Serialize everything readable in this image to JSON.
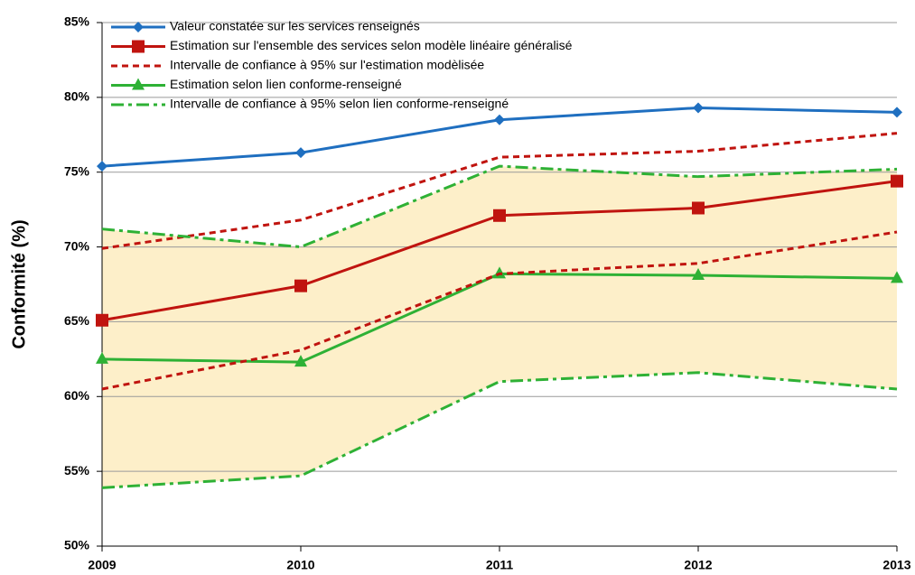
{
  "chart_data": {
    "type": "line",
    "y_label": "Conformité (%)",
    "categories": [
      "2009",
      "2010",
      "2011",
      "2012",
      "2013"
    ],
    "ylim": [
      50,
      85
    ],
    "yticks": [
      {
        "value": 50,
        "label": "50%"
      },
      {
        "value": 55,
        "label": "55%"
      },
      {
        "value": 60,
        "label": "60%"
      },
      {
        "value": 65,
        "label": "65%"
      },
      {
        "value": 70,
        "label": "70%"
      },
      {
        "value": 75,
        "label": "75%"
      },
      {
        "value": 80,
        "label": "80%"
      },
      {
        "value": 85,
        "label": "85%"
      }
    ],
    "grid": true,
    "legend": "top-left",
    "fill_color": "#fdefc9",
    "series": [
      {
        "name": "Valeur constatée sur les services renseignés",
        "color": "#1f6fc0",
        "dash": "solid",
        "marker": "diamond",
        "values": [
          75.4,
          76.3,
          78.5,
          79.3,
          79.0
        ]
      },
      {
        "name": "Estimation sur l'ensemble des services selon modèle linéaire généralisé",
        "color": "#c0140f",
        "dash": "solid",
        "marker": "square",
        "values": [
          65.1,
          67.4,
          72.1,
          72.6,
          74.4
        ]
      },
      {
        "name": "Intervalle de confiance à 95% sur l'estimation modèlisée",
        "color": "#c0140f",
        "dash": "dash",
        "marker": "none",
        "values": [
          69.9,
          71.8,
          76.0,
          76.4,
          77.6
        ]
      },
      {
        "name": "Estimation selon lien conforme-renseigné",
        "color": "#2eb135",
        "dash": "solid",
        "marker": "triangle",
        "values": [
          62.5,
          62.3,
          68.2,
          68.1,
          67.9
        ]
      },
      {
        "name": "Intervalle de confiance à 95% selon lien conforme-renseigné",
        "color": "#2eb135",
        "dash": "dashdot",
        "marker": "none",
        "values": [
          71.2,
          70.0,
          75.4,
          74.7,
          75.2
        ]
      },
      {
        "color": "#c0140f",
        "dash": "dash",
        "marker": "none",
        "values": [
          60.5,
          63.1,
          68.2,
          68.9,
          71.0
        ]
      },
      {
        "color": "#2eb135",
        "dash": "dashdot",
        "marker": "none",
        "values": [
          53.9,
          54.7,
          61.0,
          61.6,
          60.5
        ]
      }
    ]
  }
}
